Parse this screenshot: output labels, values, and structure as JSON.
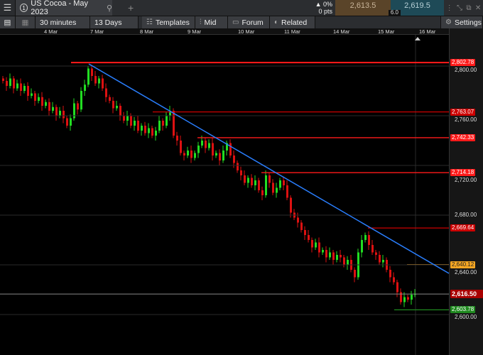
{
  "tab": {
    "number": "1",
    "title": "US Cocoa - May 2023",
    "search_icon": "search-icon",
    "add": "+"
  },
  "quote": {
    "change_pct": "▲ 0%",
    "change_pts": "0 pts",
    "sell": "2,613.5",
    "buy": "2,619.5",
    "spread": "6.0"
  },
  "toolbar": {
    "interval": "30 minutes",
    "range": "13 Days",
    "templates": "Templates",
    "price_type": "Mid",
    "forum": "Forum",
    "related": "Related",
    "settings": "Settings"
  },
  "date_labels": [
    "4 Mar",
    "7 Mar",
    "8 Mar",
    "9 Mar",
    "10 Mar",
    "11 Mar",
    "14 Mar",
    "15 Mar",
    "16 Mar"
  ],
  "price_gridlabels": [
    "2,800.00",
    "2,760.00",
    "2,720.00",
    "2,680.00",
    "2,640.00",
    "2,600.00"
  ],
  "levels": [
    {
      "label": "2,802.78",
      "value": 2802.78,
      "color": "#ff1a1a"
    },
    {
      "label": "2,763.07",
      "value": 2763.07,
      "color": "#cc0000"
    },
    {
      "label": "2,742.33",
      "value": 2742.33,
      "color": "#ff1a1a"
    },
    {
      "label": "2,714.18",
      "value": 2714.18,
      "color": "#ff1a1a"
    },
    {
      "label": "2,669.64",
      "value": 2669.64,
      "color": "#cc0000"
    },
    {
      "label": "2,640.12",
      "value": 2640.12,
      "color": "#f5a623"
    },
    {
      "label": "2,603.78",
      "value": 2603.78,
      "color": "#1f8a1f"
    }
  ],
  "current_price": {
    "label": "2,616.50",
    "value": 2616.5,
    "color": "#a80000"
  },
  "colors": {
    "up": "#22dd22",
    "down": "#dd1111",
    "trendline": "#2a7fff"
  },
  "chart_data": {
    "type": "candlestick",
    "ylim": [
      2580,
      2830
    ],
    "closes": [
      2788,
      2784,
      2790,
      2782,
      2786,
      2780,
      2784,
      2776,
      2778,
      2772,
      2775,
      2768,
      2771,
      2764,
      2767,
      2760,
      2764,
      2758,
      2752,
      2758,
      2770,
      2765,
      2780,
      2785,
      2798,
      2792,
      2786,
      2790,
      2782,
      2775,
      2772,
      2766,
      2768,
      2760,
      2756,
      2760,
      2752,
      2756,
      2748,
      2752,
      2746,
      2750,
      2744,
      2748,
      2756,
      2752,
      2760,
      2764,
      2744,
      2740,
      2730,
      2728,
      2732,
      2726,
      2730,
      2736,
      2740,
      2734,
      2738,
      2728,
      2730,
      2724,
      2732,
      2738,
      2728,
      2722,
      2716,
      2712,
      2706,
      2710,
      2704,
      2708,
      2700,
      2696,
      2712,
      2706,
      2698,
      2702,
      2708,
      2704,
      2694,
      2682,
      2678,
      2674,
      2668,
      2664,
      2660,
      2654,
      2658,
      2650,
      2652,
      2646,
      2650,
      2644,
      2648,
      2646,
      2640,
      2644,
      2636,
      2630,
      2650,
      2660,
      2664,
      2656,
      2650,
      2648,
      2642,
      2644,
      2636,
      2630,
      2626,
      2618,
      2610,
      2614,
      2612,
      2616,
      2616.5
    ]
  }
}
